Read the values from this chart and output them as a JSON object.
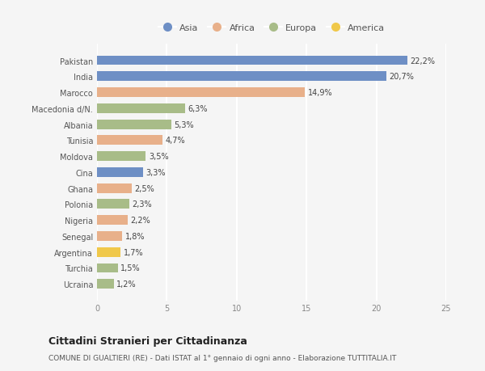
{
  "categories": [
    "Pakistan",
    "India",
    "Marocco",
    "Macedonia d/N.",
    "Albania",
    "Tunisia",
    "Moldova",
    "Cina",
    "Ghana",
    "Polonia",
    "Nigeria",
    "Senegal",
    "Argentina",
    "Turchia",
    "Ucraina"
  ],
  "values": [
    22.2,
    20.7,
    14.9,
    6.3,
    5.3,
    4.7,
    3.5,
    3.3,
    2.5,
    2.3,
    2.2,
    1.8,
    1.7,
    1.5,
    1.2
  ],
  "labels": [
    "22,2%",
    "20,7%",
    "14,9%",
    "6,3%",
    "5,3%",
    "4,7%",
    "3,5%",
    "3,3%",
    "2,5%",
    "2,3%",
    "2,2%",
    "1,8%",
    "1,7%",
    "1,5%",
    "1,2%"
  ],
  "continents": [
    "Asia",
    "Asia",
    "Africa",
    "Europa",
    "Europa",
    "Africa",
    "Europa",
    "Asia",
    "Africa",
    "Europa",
    "Africa",
    "Africa",
    "America",
    "Europa",
    "Europa"
  ],
  "continent_colors": {
    "Asia": "#6e8fc5",
    "Africa": "#e8b08a",
    "Europa": "#a8bc88",
    "America": "#f0c84a"
  },
  "legend_order": [
    "Asia",
    "Africa",
    "Europa",
    "America"
  ],
  "title": "Cittadini Stranieri per Cittadinanza",
  "subtitle": "COMUNE DI GUALTIERI (RE) - Dati ISTAT al 1° gennaio di ogni anno - Elaborazione TUTTITALIA.IT",
  "xlim": [
    0,
    25
  ],
  "xticks": [
    0,
    5,
    10,
    15,
    20,
    25
  ],
  "background_color": "#f5f5f5",
  "bar_height": 0.6,
  "grid_color": "#ffffff",
  "title_fontsize": 9,
  "subtitle_fontsize": 6.5,
  "label_fontsize": 7,
  "tick_fontsize": 7,
  "legend_fontsize": 8
}
